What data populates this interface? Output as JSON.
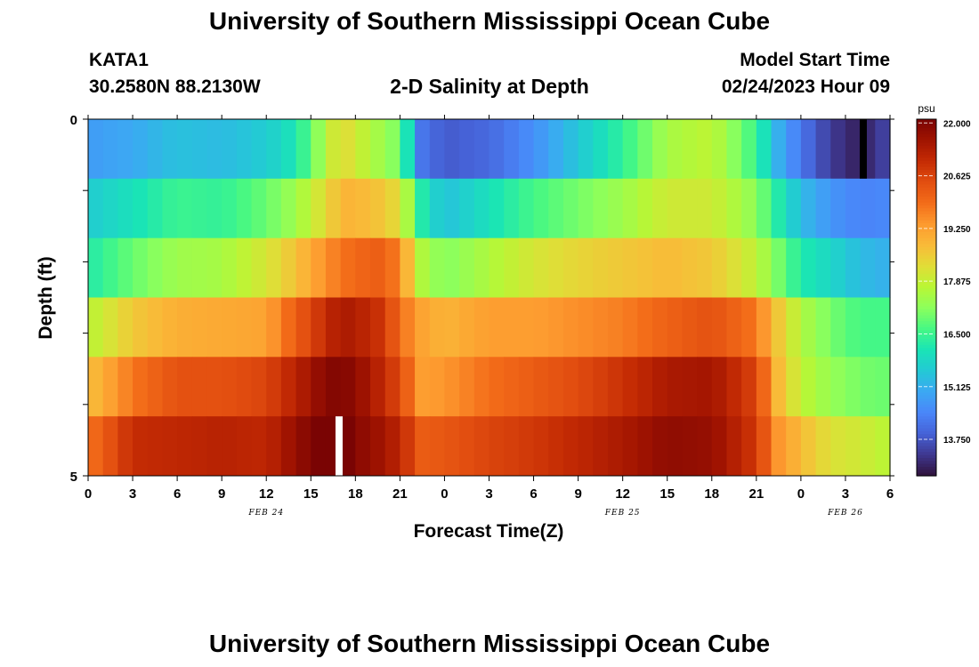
{
  "header": {
    "title": "University of Southern Mississippi Ocean Cube",
    "station_id": "KATA1",
    "coordinates": "30.2580N  88.2130W",
    "plot_title": "2-D Salinity at Depth",
    "model_start_label": "Model Start Time",
    "model_start_value": "02/24/2023 Hour 09"
  },
  "footer": {
    "title": "University of Southern Mississippi Ocean Cube"
  },
  "chart_data": {
    "type": "heatmap",
    "title": "2-D Salinity at Depth",
    "xlabel": "Forecast Time(Z)",
    "ylabel": "Depth (ft)",
    "x_range_hours": [
      0,
      54
    ],
    "x_tick_labels": [
      "0",
      "3",
      "6",
      "9",
      "12",
      "15",
      "18",
      "21",
      "0",
      "3",
      "6",
      "9",
      "12",
      "15",
      "18",
      "21",
      "0",
      "3",
      "6"
    ],
    "date_labels": [
      {
        "text": "FEB 24",
        "hour": 12
      },
      {
        "text": "FEB 25",
        "hour": 36
      },
      {
        "text": "FEB 26",
        "hour": 51
      }
    ],
    "y_range_ft": [
      0,
      5
    ],
    "y_tick_labels": [
      "0",
      "5"
    ],
    "depth_layers_ft": [
      0.25,
      1,
      2,
      3,
      4,
      4.75
    ],
    "colorbar": {
      "unit": "psu",
      "min": 12.8,
      "max": 22.1,
      "tick_values": [
        22.0,
        20.625,
        19.25,
        17.875,
        16.5,
        15.125,
        13.75
      ],
      "tick_labels": [
        "22.000",
        "20.625",
        "19.250",
        "17.875",
        "16.500",
        "15.125",
        "13.750"
      ]
    },
    "salinity_keyframes": {
      "hours": [
        0,
        3,
        6,
        9,
        12,
        14,
        16,
        17,
        18,
        20,
        21,
        22.5,
        24,
        27,
        30,
        33,
        36,
        39,
        42,
        45,
        46.5,
        48,
        50,
        52,
        54
      ],
      "layers": [
        [
          14.8,
          15.0,
          15.4,
          15.3,
          15.6,
          16.1,
          17.6,
          18.4,
          18.0,
          17.3,
          17.0,
          14.2,
          13.8,
          14.0,
          14.6,
          15.5,
          16.4,
          17.5,
          17.8,
          16.5,
          15.1,
          14.2,
          13.4,
          13.0,
          13.6
        ],
        [
          15.6,
          16.0,
          16.5,
          16.4,
          16.9,
          17.4,
          18.3,
          18.9,
          18.9,
          18.6,
          18.2,
          16.2,
          15.4,
          16.0,
          16.6,
          17.0,
          17.4,
          18.0,
          18.0,
          17.2,
          16.2,
          15.3,
          14.7,
          14.4,
          14.5
        ],
        [
          16.2,
          16.9,
          17.4,
          17.5,
          18.1,
          18.7,
          19.5,
          19.8,
          20.0,
          20.2,
          19.5,
          17.6,
          17.1,
          17.6,
          18.1,
          18.4,
          18.6,
          18.8,
          18.6,
          17.8,
          17.0,
          16.2,
          15.8,
          15.3,
          15.1
        ],
        [
          17.7,
          18.6,
          19.0,
          19.1,
          19.2,
          20.2,
          21.0,
          21.4,
          21.3,
          20.8,
          19.9,
          19.2,
          18.9,
          19.3,
          19.3,
          19.5,
          19.7,
          20.1,
          20.4,
          19.8,
          18.6,
          17.6,
          17.0,
          16.6,
          16.6
        ],
        [
          18.7,
          19.8,
          20.4,
          20.4,
          20.6,
          21.2,
          21.9,
          22.0,
          21.8,
          21.0,
          20.5,
          19.3,
          19.4,
          19.9,
          20.2,
          20.5,
          20.9,
          21.4,
          21.5,
          20.6,
          18.8,
          17.8,
          17.3,
          17.0,
          16.9
        ],
        [
          19.8,
          21.0,
          21.1,
          21.2,
          21.1,
          21.7,
          22.3,
          22.4,
          21.9,
          21.5,
          21.1,
          20.2,
          20.3,
          20.6,
          20.8,
          21.1,
          21.4,
          21.8,
          21.7,
          20.8,
          19.4,
          18.8,
          18.2,
          18.0,
          17.7
        ]
      ]
    },
    "missing_data_marks": [
      {
        "hour": 16.9,
        "layer": 5,
        "color": "#ffffff"
      },
      {
        "hour": 52.2,
        "layer": 0,
        "color": "#000000"
      }
    ],
    "colormap_stops": [
      "#30123b",
      "#3e378f",
      "#4662d7",
      "#4a86f9",
      "#3ca8f3",
      "#23c9d5",
      "#1ae4b6",
      "#46f884",
      "#8cff5c",
      "#b9f635",
      "#e1dd37",
      "#f9ba38",
      "#fd9a2f",
      "#f36c19",
      "#e24e10",
      "#c42b04",
      "#a01301",
      "#7a0403"
    ]
  }
}
